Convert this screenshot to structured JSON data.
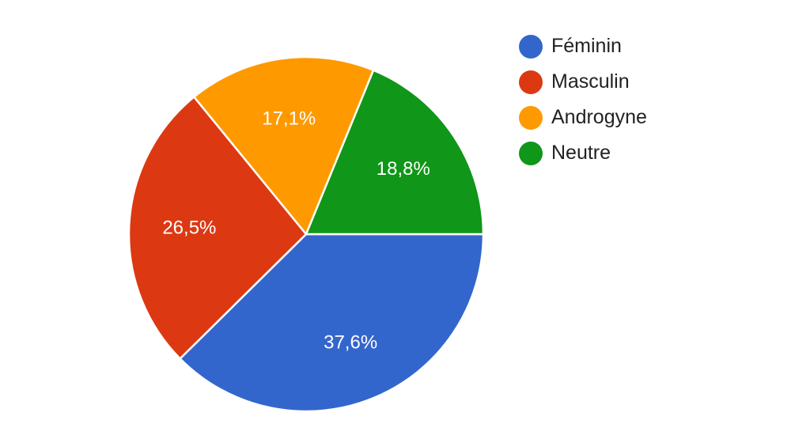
{
  "chart_data": {
    "type": "pie",
    "categories": [
      "Féminin",
      "Masculin",
      "Androgyne",
      "Neutre"
    ],
    "values": [
      37.6,
      26.5,
      17.1,
      18.8
    ],
    "labels": [
      "37,6%",
      "26,5%",
      "17,1%",
      "18,8%"
    ],
    "colors": [
      "#3366cc",
      "#dc3912",
      "#ff9900",
      "#109618"
    ],
    "legend": "right",
    "start_angle_deg": 90,
    "direction": "clockwise"
  }
}
